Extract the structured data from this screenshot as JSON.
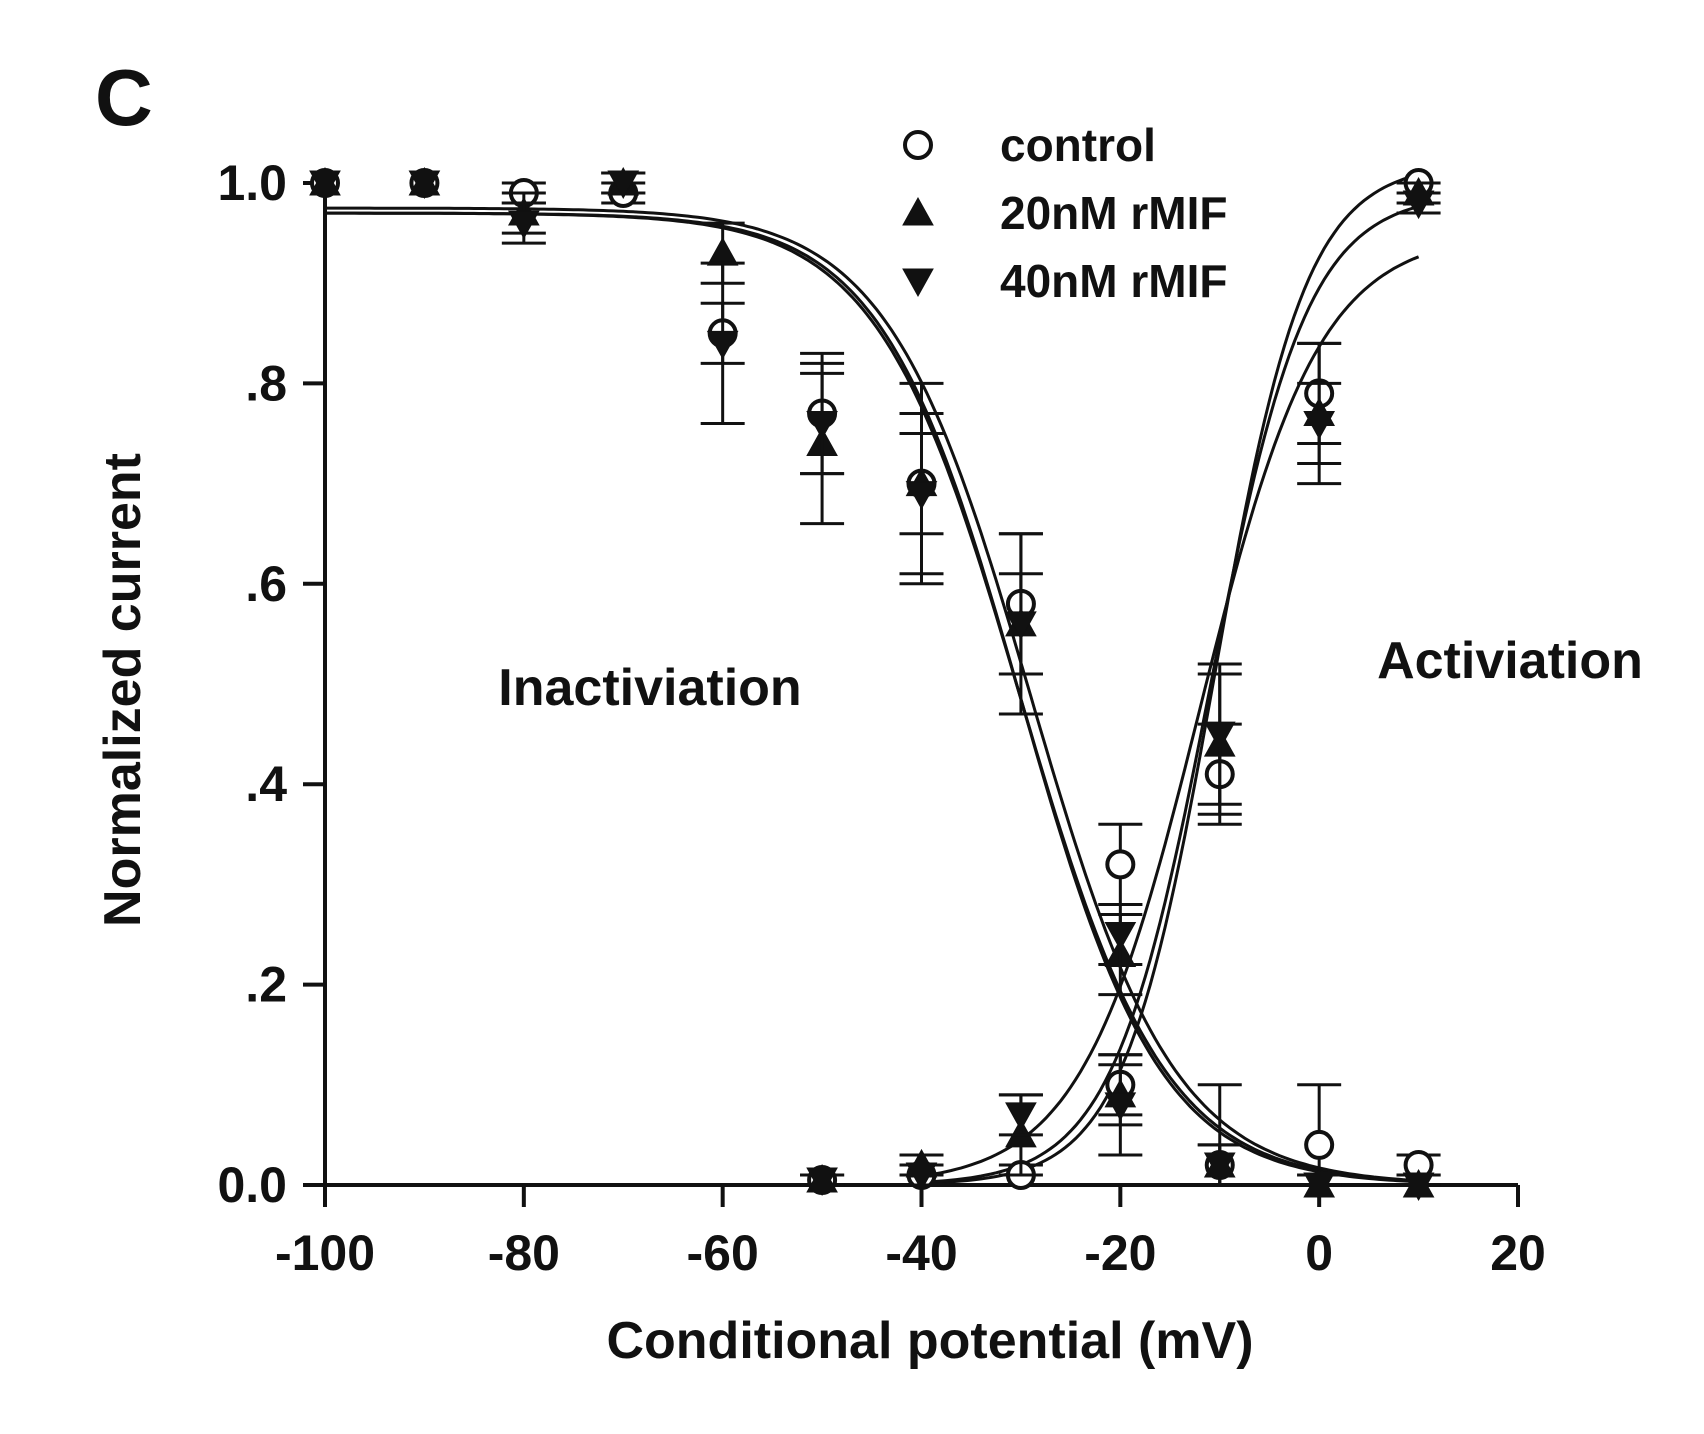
{
  "chart_data": {
    "type": "scatter",
    "panel_label": "C",
    "xlabel": "Conditional potential (mV)",
    "ylabel": "Normalized current",
    "xlim": [
      -100,
      20
    ],
    "ylim": [
      0,
      1.0
    ],
    "x_ticks": [
      -100,
      -80,
      -60,
      -40,
      -20,
      0,
      20
    ],
    "x_tick_labels": [
      "-100",
      "-80",
      "-60",
      "-40",
      "-20",
      "0",
      "20"
    ],
    "y_ticks": [
      0,
      0.2,
      0.4,
      0.6,
      0.8,
      1.0
    ],
    "y_tick_labels": [
      "0.0",
      ".2",
      ".4",
      ".6",
      ".8",
      "1.0"
    ],
    "grid": false,
    "legend_position": "top-right",
    "annotations": [
      {
        "text": "Inactiviation",
        "x": -55,
        "y": 0.5
      },
      {
        "text": "Activiation",
        "x": 10,
        "y": 0.52
      }
    ],
    "series": [
      {
        "name": "control",
        "marker": "circle-open",
        "color": "#111111",
        "inactivation": {
          "x": [
            -100,
            -90,
            -80,
            -70,
            -60,
            -50,
            -40,
            -30,
            -20,
            -10,
            0,
            10
          ],
          "y": [
            1.0,
            1.0,
            0.99,
            0.99,
            0.85,
            0.77,
            0.7,
            0.58,
            0.32,
            0.02,
            0.04,
            0.02
          ],
          "err": [
            0.0,
            0.0,
            0.01,
            0.01,
            0.03,
            0.06,
            0.1,
            0.07,
            0.04,
            0.08,
            0.06,
            0.01
          ]
        },
        "activation": {
          "x": [
            -50,
            -40,
            -30,
            -20,
            -10,
            0,
            10
          ],
          "y": [
            0.005,
            0.01,
            0.01,
            0.1,
            0.41,
            0.79,
            1.0
          ],
          "err": [
            0.005,
            0.01,
            0.01,
            0.03,
            0.05,
            0.05,
            0.0
          ]
        },
        "inactivation_fit": {
          "v_half": -29,
          "k": 7.2,
          "top": 0.975
        },
        "activation_fit": {
          "v_half": -10.5,
          "k": 4.6,
          "top": 1.02
        }
      },
      {
        "name": "20nM rMIF",
        "marker": "triangle-up",
        "color": "#111111",
        "inactivation": {
          "x": [
            -100,
            -90,
            -80,
            -70,
            -60,
            -50,
            -40,
            -30,
            -20,
            -10,
            0,
            10
          ],
          "y": [
            1.0,
            1.0,
            0.97,
            1.0,
            0.93,
            0.74,
            0.7,
            0.56,
            0.23,
            0.02,
            0.0,
            0.0
          ],
          "err": [
            0.0,
            0.0,
            0.02,
            0.01,
            0.03,
            0.08,
            0.05,
            0.09,
            0.04,
            0.02,
            0.01,
            0.01
          ]
        },
        "activation": {
          "x": [
            -50,
            -40,
            -30,
            -20,
            -10,
            0,
            10
          ],
          "y": [
            0.005,
            0.02,
            0.05,
            0.09,
            0.44,
            0.77,
            0.99
          ],
          "err": [
            0.005,
            0.01,
            0.04,
            0.03,
            0.07,
            0.07,
            0.01
          ]
        },
        "inactivation_fit": {
          "v_half": -30,
          "k": 7.2,
          "top": 0.97
        },
        "activation_fit": {
          "v_half": -11.0,
          "k": 4.9,
          "top": 0.99
        }
      },
      {
        "name": "40nM rMIF",
        "marker": "triangle-down",
        "color": "#111111",
        "inactivation": {
          "x": [
            -100,
            -90,
            -80,
            -70,
            -60,
            -50,
            -40,
            -30,
            -20,
            -10,
            0,
            10
          ],
          "y": [
            1.0,
            1.0,
            0.96,
            1.0,
            0.84,
            0.76,
            0.69,
            0.56,
            0.25,
            0.02,
            0.0,
            0.0
          ],
          "err": [
            0.0,
            0.0,
            0.02,
            0.01,
            0.08,
            0.05,
            0.08,
            0.05,
            0.03,
            0.02,
            0.01,
            0.01
          ]
        },
        "activation": {
          "x": [
            -50,
            -40,
            -30,
            -20,
            -10,
            0,
            10
          ],
          "y": [
            0.005,
            0.01,
            0.07,
            0.08,
            0.45,
            0.76,
            0.98
          ],
          "err": [
            0.005,
            0.01,
            0.02,
            0.05,
            0.07,
            0.04,
            0.01
          ]
        },
        "inactivation_fit": {
          "v_half": -30,
          "k": 7.0,
          "top": 0.97
        },
        "activation_fit": {
          "v_half": -12.0,
          "k": 6.0,
          "top": 0.95
        }
      }
    ]
  }
}
